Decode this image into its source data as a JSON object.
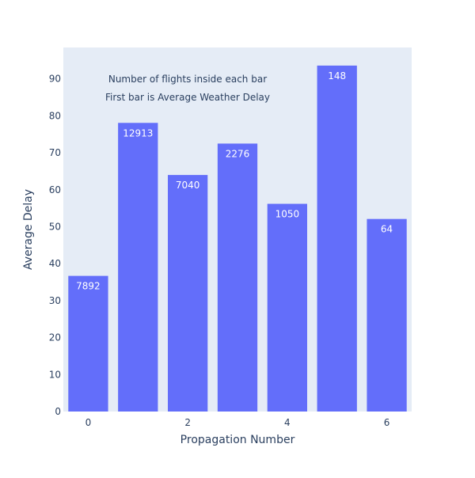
{
  "chart_data": {
    "type": "bar",
    "x": [
      0,
      1,
      2,
      3,
      4,
      5,
      6
    ],
    "values": [
      36.7,
      78.1,
      64.0,
      72.5,
      56.2,
      93.6,
      52.1
    ],
    "bar_labels": [
      "7892",
      "12913",
      "7040",
      "2276",
      "1050",
      "148",
      "64"
    ],
    "xlabel": "Propagation Number",
    "ylabel": "Average Delay",
    "x_ticks": [
      0,
      2,
      4,
      6
    ],
    "y_ticks": [
      0,
      10,
      20,
      30,
      40,
      50,
      60,
      70,
      80,
      90
    ],
    "ylim": [
      0,
      98.5
    ],
    "xlim": [
      -0.5,
      6.5
    ],
    "annotations": [
      "Number of flights inside each bar",
      "First bar is Average Weather Delay"
    ],
    "grid": false,
    "colors": {
      "bar": "#636efa",
      "plot_bg": "#e5ecf6",
      "text": "#2a3f5f",
      "bar_label": "#ffffff"
    }
  }
}
